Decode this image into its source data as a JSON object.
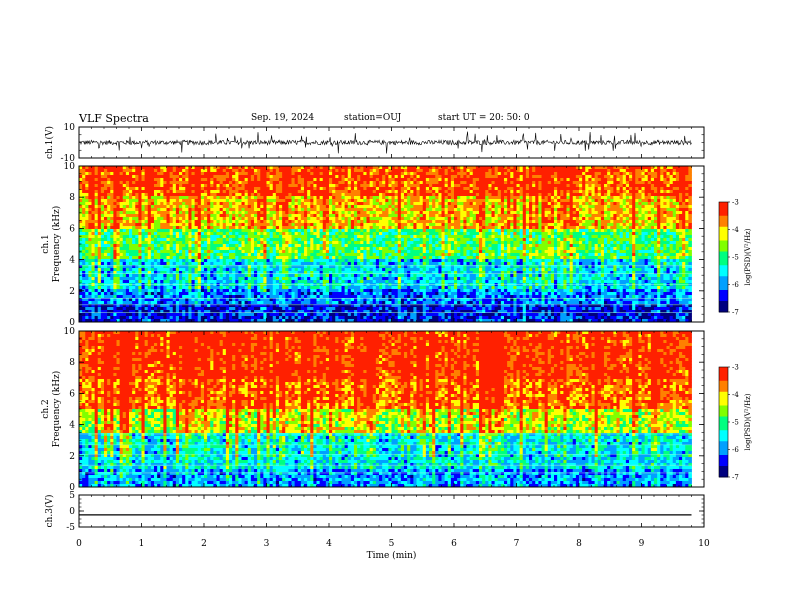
{
  "header": {
    "title": "VLF Spectra",
    "date": "Sep. 19, 2024",
    "station": "station=OUJ",
    "start": "start  UT  =   20: 50: 0"
  },
  "colors": {
    "axis": "#000000",
    "colormap": [
      "#00007f",
      "#0000ff",
      "#00a0ff",
      "#00ffff",
      "#00ff80",
      "#80ff00",
      "#ffff00",
      "#ff8000",
      "#ff2000"
    ]
  },
  "chart_data": [
    {
      "type": "line",
      "id": "ch1-waveform",
      "ylabel": "ch.1(V)",
      "ylim": [
        -10,
        10
      ],
      "yticks": [
        "10",
        "-10"
      ],
      "xlim": [
        0,
        10
      ],
      "approx_mean": 0,
      "approx_amplitude": 3
    },
    {
      "type": "heatmap",
      "id": "ch1-spectrogram",
      "ylabel": "ch.1\nFrequency (kHz)",
      "ylim": [
        0,
        10
      ],
      "yticks": [
        "0",
        "2",
        "4",
        "6",
        "8",
        "10"
      ],
      "xlim": [
        0,
        9.8
      ],
      "colorbar": {
        "label": "log(PSD)(V²/Hz)",
        "range": [
          -7,
          -3
        ],
        "ticks": [
          "-3",
          "-4",
          "-5",
          "-6",
          "-7"
        ]
      }
    },
    {
      "type": "heatmap",
      "id": "ch2-spectrogram",
      "ylabel": "ch.2\nFrequency (kHz)",
      "ylim": [
        0,
        10
      ],
      "yticks": [
        "0",
        "2",
        "4",
        "6",
        "8",
        "10"
      ],
      "xlim": [
        0,
        9.8
      ],
      "colorbar": {
        "label": "log(PSD)(V²/Hz)",
        "range": [
          -7,
          -3
        ],
        "ticks": [
          "-3",
          "-4",
          "-5",
          "-6",
          "-7"
        ]
      }
    },
    {
      "type": "line",
      "id": "ch3-waveform",
      "ylabel": "ch.3(V)",
      "ylim": [
        -5,
        5
      ],
      "yticks": [
        "5",
        "0",
        "-5"
      ],
      "xlim": [
        0,
        10
      ],
      "constant_value": -1.2
    }
  ],
  "xaxis": {
    "label": "Time (min)",
    "ticks": [
      "0",
      "1",
      "2",
      "3",
      "4",
      "5",
      "6",
      "7",
      "8",
      "9",
      "10"
    ]
  }
}
